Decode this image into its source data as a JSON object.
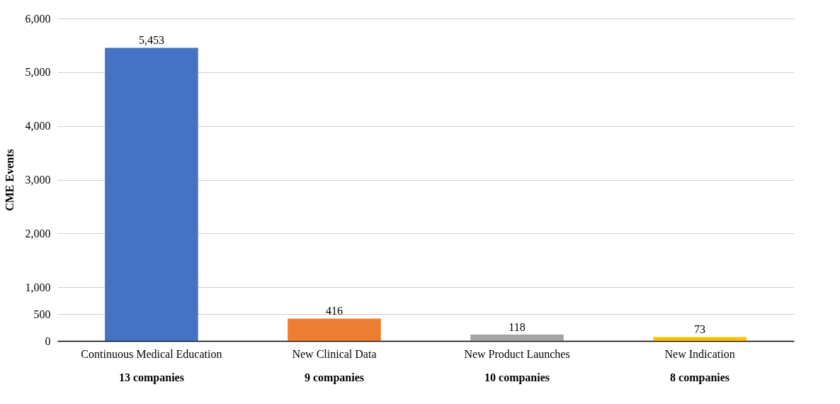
{
  "chart_data": {
    "type": "bar",
    "ylabel": "CME Events",
    "categories": [
      "Continuous Medical Education\n13 companies",
      "New Clinical Data\n9 companies",
      "New Product Launches\n10 companies",
      "New Indication\n8 companies"
    ],
    "values": [
      5453,
      416,
      118,
      73
    ],
    "value_labels": [
      "5,453",
      "416",
      "118",
      "73"
    ],
    "colors": [
      "#4472c4",
      "#ed7d31",
      "#a5a5a5",
      "#ffc000"
    ],
    "ylim": [
      0,
      6000
    ],
    "yticks": [
      0,
      {
        "value": 500,
        "label": "500"
      },
      {
        "value": 1000,
        "label": "1,000"
      },
      {
        "value": 2000,
        "label": "2,000"
      },
      {
        "value": 3000,
        "label": "3,000"
      },
      {
        "value": 4000,
        "label": "4,000"
      },
      {
        "value": 5000,
        "label": "5,000"
      },
      {
        "value": 6000,
        "label": "6,000"
      }
    ],
    "grid": "y"
  }
}
